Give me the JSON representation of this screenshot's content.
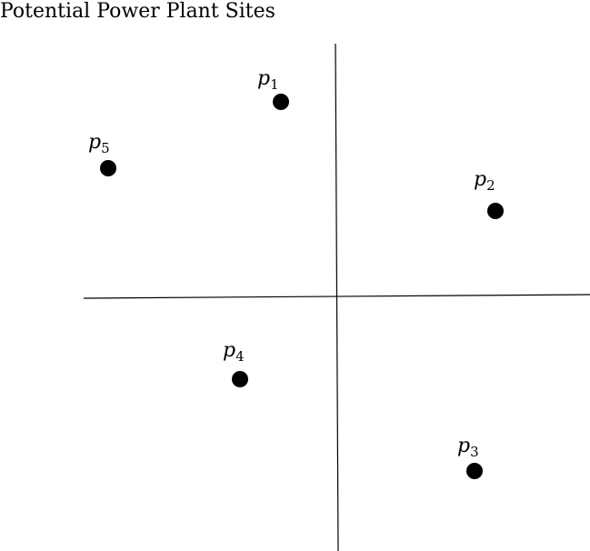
{
  "title": "Potential Power Plant Sites",
  "sites": [
    {
      "name": "p",
      "sub": "1"
    },
    {
      "name": "p",
      "sub": "2"
    },
    {
      "name": "p",
      "sub": "3"
    },
    {
      "name": "p",
      "sub": "4"
    },
    {
      "name": "p",
      "sub": "5"
    }
  ],
  "colors": {
    "ink": "#000000",
    "background": "#ffffff"
  }
}
